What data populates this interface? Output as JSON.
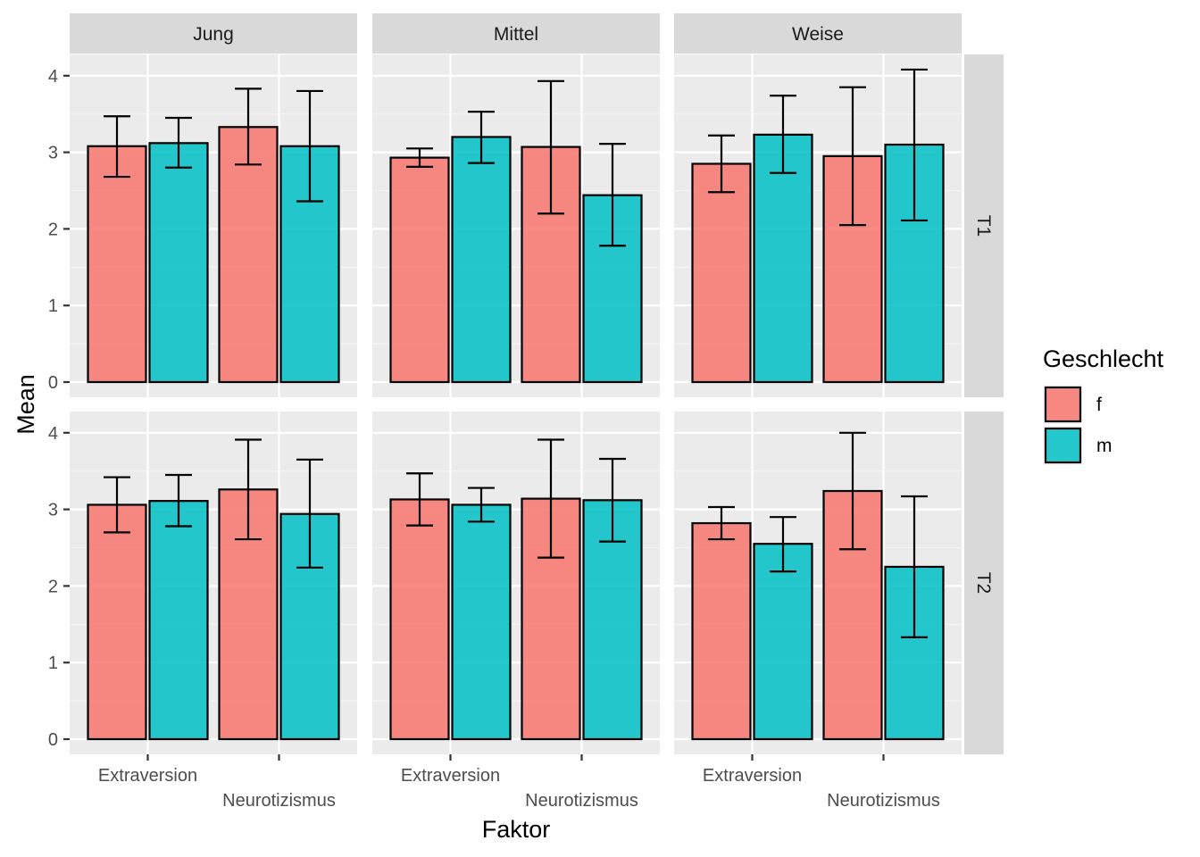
{
  "chart_data": {
    "type": "bar",
    "facet_columns": [
      "Jung",
      "Mittel",
      "Weise"
    ],
    "facet_rows": [
      "T1",
      "T2"
    ],
    "categories": [
      "Extraversion",
      "Neurotizismus"
    ],
    "xlabel": "Faktor",
    "ylabel": "Mean",
    "ylim": [
      0,
      4
    ],
    "yticks": [
      "0",
      "1",
      "2",
      "3",
      "4"
    ],
    "legend": {
      "title": "Geschlecht",
      "position": "right",
      "entries": [
        {
          "label": "f",
          "color": "#F8766D"
        },
        {
          "label": "m",
          "color": "#00BFC4"
        }
      ]
    },
    "error_bars": true,
    "grid": true,
    "panels": [
      {
        "row": "T1",
        "col": "Jung",
        "series": [
          {
            "name": "f",
            "values": [
              3.08,
              3.33
            ],
            "lower": [
              2.68,
              2.84
            ],
            "upper": [
              3.47,
              3.83
            ]
          },
          {
            "name": "m",
            "values": [
              3.12,
              3.08
            ],
            "lower": [
              2.8,
              2.36
            ],
            "upper": [
              3.45,
              3.8
            ]
          }
        ]
      },
      {
        "row": "T1",
        "col": "Mittel",
        "series": [
          {
            "name": "f",
            "values": [
              2.93,
              3.07
            ],
            "lower": [
              2.81,
              2.2
            ],
            "upper": [
              3.05,
              3.93
            ]
          },
          {
            "name": "m",
            "values": [
              3.2,
              2.44
            ],
            "lower": [
              2.86,
              1.78
            ],
            "upper": [
              3.53,
              3.11
            ]
          }
        ]
      },
      {
        "row": "T1",
        "col": "Weise",
        "series": [
          {
            "name": "f",
            "values": [
              2.85,
              2.95
            ],
            "lower": [
              2.48,
              2.05
            ],
            "upper": [
              3.22,
              3.85
            ]
          },
          {
            "name": "m",
            "values": [
              3.23,
              3.1
            ],
            "lower": [
              2.73,
              2.11
            ],
            "upper": [
              3.74,
              4.08
            ]
          }
        ]
      },
      {
        "row": "T2",
        "col": "Jung",
        "series": [
          {
            "name": "f",
            "values": [
              3.06,
              3.26
            ],
            "lower": [
              2.7,
              2.61
            ],
            "upper": [
              3.42,
              3.91
            ]
          },
          {
            "name": "m",
            "values": [
              3.11,
              2.94
            ],
            "lower": [
              2.78,
              2.24
            ],
            "upper": [
              3.45,
              3.65
            ]
          }
        ]
      },
      {
        "row": "T2",
        "col": "Mittel",
        "series": [
          {
            "name": "f",
            "values": [
              3.13,
              3.14
            ],
            "lower": [
              2.79,
              2.37
            ],
            "upper": [
              3.47,
              3.91
            ]
          },
          {
            "name": "m",
            "values": [
              3.06,
              3.12
            ],
            "lower": [
              2.84,
              2.58
            ],
            "upper": [
              3.28,
              3.66
            ]
          }
        ]
      },
      {
        "row": "T2",
        "col": "Weise",
        "series": [
          {
            "name": "f",
            "values": [
              2.82,
              3.24
            ],
            "lower": [
              2.61,
              2.48
            ],
            "upper": [
              3.03,
              4.0
            ]
          },
          {
            "name": "m",
            "values": [
              2.55,
              2.25
            ],
            "lower": [
              2.19,
              1.33
            ],
            "upper": [
              2.9,
              3.17
            ]
          }
        ]
      }
    ]
  }
}
